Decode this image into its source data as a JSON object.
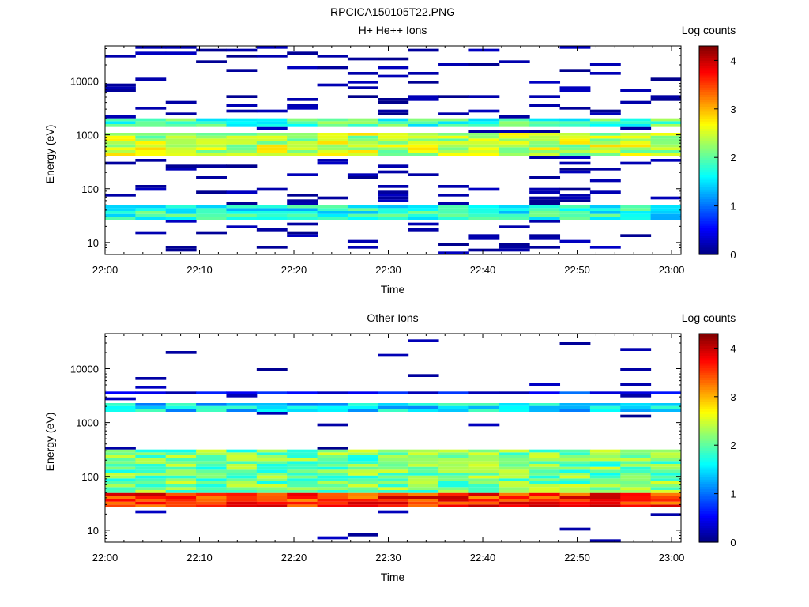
{
  "figure": {
    "title": "RPCICA150105T22.PNG"
  },
  "colorbar": {
    "label": "Log counts",
    "range": [
      0,
      4.3
    ],
    "ticks": [
      "0",
      "1",
      "2",
      "3",
      "4"
    ],
    "tick_values": [
      0,
      1,
      2,
      3,
      4
    ],
    "colormap": "jet"
  },
  "chart_data": [
    {
      "type": "heatmap",
      "title": "H+ He++ Ions",
      "xlabel": "Time",
      "ylabel": "Energy (eV)",
      "x_ticks": [
        "22:00",
        "22:10",
        "22:20",
        "22:30",
        "22:40",
        "22:50",
        "23:00"
      ],
      "x_range": [
        "22:00",
        "23:01"
      ],
      "y_scale": "log",
      "y_ticks": [
        "10",
        "100",
        "1000",
        "10000"
      ],
      "y_tick_values": [
        10,
        100,
        1000,
        10000
      ],
      "y_range": [
        6,
        45000
      ],
      "color_label": "Log counts",
      "bands": [
        {
          "emin": 25,
          "emax": 48,
          "value": 1.7
        },
        {
          "emin": 400,
          "emax": 1050,
          "value": 2.4
        },
        {
          "emin": 1400,
          "emax": 2100,
          "value": 1.9
        }
      ]
    },
    {
      "type": "heatmap",
      "title": "Other Ions",
      "xlabel": "Time",
      "ylabel": "Energy (eV)",
      "x_ticks": [
        "22:00",
        "22:10",
        "22:20",
        "22:30",
        "22:40",
        "22:50",
        "23:00"
      ],
      "x_range": [
        "22:00",
        "23:01"
      ],
      "y_scale": "log",
      "y_ticks": [
        "10",
        "100",
        "1000",
        "10000"
      ],
      "y_tick_values": [
        10,
        100,
        1000,
        10000
      ],
      "y_range": [
        6,
        45000
      ],
      "color_label": "Log counts",
      "bands": [
        {
          "emin": 25,
          "emax": 48,
          "value": 3.6
        },
        {
          "emin": 48,
          "emax": 300,
          "value": 2.1
        },
        {
          "emin": 1600,
          "emax": 2200,
          "value": 1.5
        },
        {
          "emin": 3200,
          "emax": 4000,
          "value": 0.6
        }
      ]
    }
  ]
}
